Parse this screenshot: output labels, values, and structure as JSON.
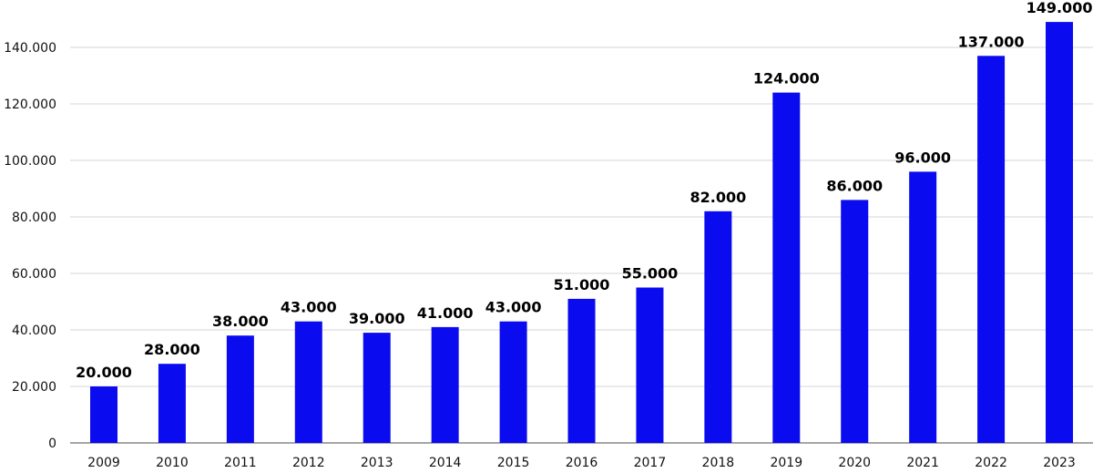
{
  "chart_data": {
    "type": "bar",
    "title": "",
    "xlabel": "",
    "ylabel": "",
    "categories": [
      "2009",
      "2010",
      "2011",
      "2012",
      "2013",
      "2014",
      "2015",
      "2016",
      "2017",
      "2018",
      "2019",
      "2020",
      "2021",
      "2022",
      "2023"
    ],
    "values": [
      20000,
      28000,
      38000,
      43000,
      39000,
      41000,
      43000,
      51000,
      55000,
      82000,
      124000,
      86000,
      96000,
      137000,
      149000
    ],
    "data_labels": [
      "20.000",
      "28.000",
      "38.000",
      "43.000",
      "39.000",
      "41.000",
      "43.000",
      "51.000",
      "55.000",
      "82.000",
      "124.000",
      "86.000",
      "96.000",
      "137.000",
      "149.000"
    ],
    "ylim": [
      0,
      140000
    ],
    "yticks": [
      0,
      20000,
      40000,
      60000,
      80000,
      100000,
      120000,
      140000
    ],
    "ytick_labels": [
      "0",
      "20.000",
      "40.000",
      "60.000",
      "80.000",
      "100.000",
      "120.000",
      "140.000"
    ],
    "grid": true,
    "legend": "none",
    "bar_color": "#0b0bf0"
  }
}
